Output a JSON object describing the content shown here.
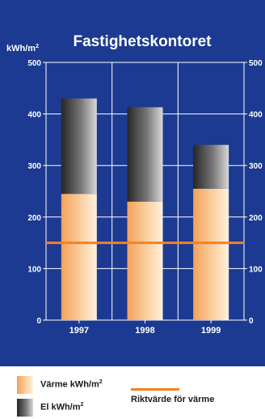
{
  "chart_data": {
    "type": "bar",
    "title": "Fastighetskontoret",
    "ylabel": "kWh/m",
    "ylabel_superscript": "2",
    "ylim": [
      0,
      500
    ],
    "yticks": [
      "0",
      "100",
      "200",
      "300",
      "400",
      "500"
    ],
    "categories": [
      "1997",
      "1998",
      "1999"
    ],
    "stacked": true,
    "series": [
      {
        "name": "Värme kWh/m²",
        "values": [
          245,
          230,
          255
        ],
        "color": "#f6a04d"
      },
      {
        "name": "El kWh/m²",
        "values": [
          185,
          183,
          85
        ],
        "color": "#555555"
      }
    ],
    "reference_line": {
      "name": "Riktvärde för värme",
      "value": 150,
      "color": "#f58220"
    },
    "grid": true,
    "background_color": "#1c3a91"
  },
  "legend": {
    "items": [
      {
        "label": "Värme kWh/m",
        "sup": "2"
      },
      {
        "label": "El kWh/m",
        "sup": "2"
      }
    ],
    "reference_label": "Riktvärde för värme"
  }
}
